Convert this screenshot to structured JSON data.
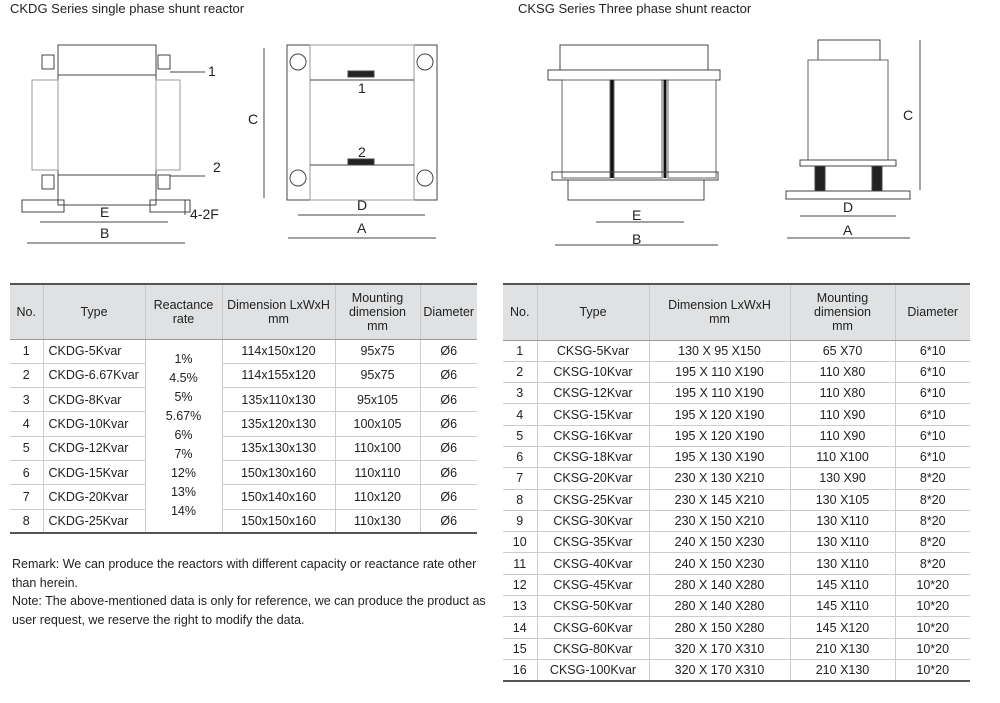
{
  "left": {
    "title": "CKDG Series single phase shunt reactor",
    "drawing_labels": {
      "part1": "1",
      "part2": "2",
      "E": "E",
      "B": "B",
      "holes": "4-2F",
      "C": "C",
      "D": "D",
      "A": "A",
      "top1": "1",
      "top2": "2"
    },
    "table": {
      "headers": [
        "No.",
        "Type",
        "Reactance rate",
        "Dimension LxWxH mm",
        "Mounting dimension mm",
        "Diameter"
      ],
      "header_lines": [
        [
          "No."
        ],
        [
          "Type"
        ],
        [
          "Reactance",
          "rate"
        ],
        [
          "Dimension LxWxH",
          "mm"
        ],
        [
          "Mounting",
          "dimension",
          "mm"
        ],
        [
          "Diameter"
        ]
      ],
      "reactance_rates": [
        "1%",
        "4.5%",
        "5%",
        "5.67%",
        "6%",
        "7%",
        "12%",
        "13%",
        "14%"
      ],
      "rows": [
        [
          "1",
          "CKDG-5Kvar",
          "114x150x120",
          "95x75",
          "Ø6"
        ],
        [
          "2",
          "CKDG-6.67Kvar",
          "114x155x120",
          "95x75",
          "Ø6"
        ],
        [
          "3",
          "CKDG-8Kvar",
          "135x110x130",
          "95x105",
          "Ø6"
        ],
        [
          "4",
          "CKDG-10Kvar",
          "135x120x130",
          "100x105",
          "Ø6"
        ],
        [
          "5",
          "CKDG-12Kvar",
          "135x130x130",
          "110x100",
          "Ø6"
        ],
        [
          "6",
          "CKDG-15Kvar",
          "150x130x160",
          "110x110",
          "Ø6"
        ],
        [
          "7",
          "CKDG-20Kvar",
          "150x140x160",
          "110x120",
          "Ø6"
        ],
        [
          "8",
          "CKDG-25Kvar",
          "150x150x160",
          "110x130",
          "Ø6"
        ]
      ]
    },
    "remarks": [
      "Remark: We can produce the reactors with different capacity or reactance rate other than herein.",
      "Note: The above-mentioned data is only for reference, we can produce the product as user request, we reserve the right to modify the data."
    ]
  },
  "right": {
    "title": "CKSG Series Three phase shunt reactor",
    "drawing_labels": {
      "E": "E",
      "B": "B",
      "C": "C",
      "D": "D",
      "A": "A"
    },
    "table": {
      "header_lines": [
        [
          "No."
        ],
        [
          "Type"
        ],
        [
          "Dimension LxWxH",
          "mm"
        ],
        [
          "Mounting",
          "dimension",
          "mm"
        ],
        [
          "Diameter"
        ]
      ],
      "rows": [
        [
          "1",
          "CKSG-5Kvar",
          "130 X 95 X150",
          "65 X70",
          "6*10"
        ],
        [
          "2",
          "CKSG-10Kvar",
          "195 X 110 X190",
          "110 X80",
          "6*10"
        ],
        [
          "3",
          "CKSG-12Kvar",
          "195 X 110 X190",
          "110 X80",
          "6*10"
        ],
        [
          "4",
          "CKSG-15Kvar",
          "195 X 120 X190",
          "110 X90",
          "6*10"
        ],
        [
          "5",
          "CKSG-16Kvar",
          "195 X 120 X190",
          "110 X90",
          "6*10"
        ],
        [
          "6",
          "CKSG-18Kvar",
          "195 X 130 X190",
          "110 X100",
          "6*10"
        ],
        [
          "7",
          "CKSG-20Kvar",
          "230 X 130 X210",
          "130 X90",
          "8*20"
        ],
        [
          "8",
          "CKSG-25Kvar",
          "230 X 145 X210",
          "130 X105",
          "8*20"
        ],
        [
          "9",
          "CKSG-30Kvar",
          "230 X 150 X210",
          "130 X110",
          "8*20"
        ],
        [
          "10",
          "CKSG-35Kvar",
          "240 X 150 X230",
          "130 X110",
          "8*20"
        ],
        [
          "11",
          "CKSG-40Kvar",
          "240 X 150 X230",
          "130 X110",
          "8*20"
        ],
        [
          "12",
          "CKSG-45Kvar",
          "280 X 140 X280",
          "145 X110",
          "10*20"
        ],
        [
          "13",
          "CKSG-50Kvar",
          "280 X 140 X280",
          "145 X110",
          "10*20"
        ],
        [
          "14",
          "CKSG-60Kvar",
          "280 X 150 X280",
          "145 X120",
          "10*20"
        ],
        [
          "15",
          "CKSG-80Kvar",
          "320 X 170 X310",
          "210 X130",
          "10*20"
        ],
        [
          "16",
          "CKSG-100Kvar",
          "320 X 170 X310",
          "210 X130",
          "10*20"
        ]
      ]
    }
  }
}
